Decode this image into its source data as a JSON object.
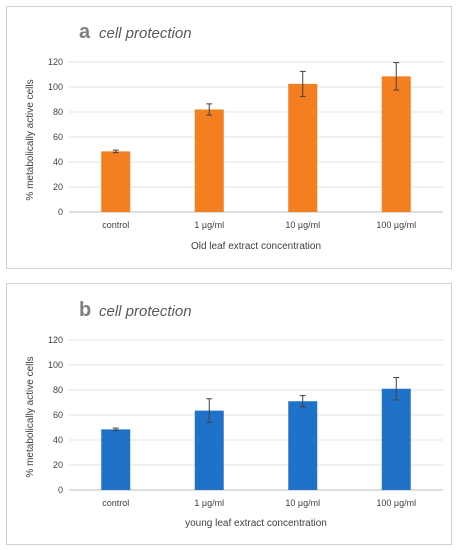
{
  "chart_data": [
    {
      "type": "bar",
      "panel_letter": "a",
      "title": "cell protection",
      "categories": [
        "control",
        "1 µg/ml",
        "10 µg/ml",
        "100 µg/ml"
      ],
      "values": [
        48.5,
        82,
        102.5,
        108.5
      ],
      "errors": [
        1,
        4.5,
        10,
        11
      ],
      "xlabel": "Old leaf extract concentration",
      "ylabel": "% metabolically active cells",
      "ylim": [
        0,
        120
      ],
      "yticks": [
        0,
        20,
        40,
        60,
        80,
        100,
        120
      ],
      "color": "#f47f20",
      "grid": true
    },
    {
      "type": "bar",
      "panel_letter": "b",
      "title": "cell protection",
      "categories": [
        "control",
        "1 µg/ml",
        "10 µg/ml",
        "100 µg/ml"
      ],
      "values": [
        48.5,
        63.5,
        71,
        81
      ],
      "errors": [
        1,
        9.5,
        4.5,
        9
      ],
      "xlabel": "young leaf extract concentration",
      "ylabel": "% metabolically active cells",
      "ylim": [
        0,
        120
      ],
      "yticks": [
        0,
        20,
        40,
        60,
        80,
        100,
        120
      ],
      "color": "#1f72c8",
      "grid": true
    }
  ]
}
